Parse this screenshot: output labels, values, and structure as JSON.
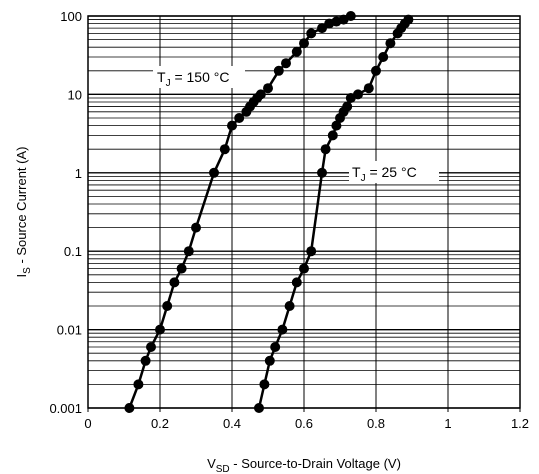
{
  "chart_data": {
    "type": "scatter",
    "xlabel": {
      "main": "V",
      "sub": "SD",
      "rest": " - Source-to-Drain Voltage (V)"
    },
    "ylabel": {
      "main": "I",
      "sub": "S",
      "rest": " - Source Current (A)"
    },
    "xlim": [
      0,
      1.2
    ],
    "ylim": [
      0.001,
      100
    ],
    "yscale": "log",
    "grid": "horizontal-minor-log",
    "x_ticks": [
      "0",
      "0.2",
      "0.4",
      "0.6",
      "0.8",
      "1",
      "1.2"
    ],
    "y_ticks": [
      "0.001",
      "0.01",
      "0.1",
      "1",
      "10",
      "100"
    ],
    "annotations": [
      {
        "label": "T",
        "sub": "J",
        "rest": " =  150 °C"
      },
      {
        "label": "T",
        "sub": "J",
        "rest": " =  25 °C"
      }
    ],
    "series": [
      {
        "x": [
          0.115,
          0.14,
          0.16,
          0.175,
          0.2,
          0.22,
          0.24,
          0.26,
          0.28,
          0.3,
          0.35,
          0.38,
          0.4,
          0.42,
          0.44,
          0.45,
          0.46,
          0.47,
          0.48,
          0.5,
          0.53,
          0.55,
          0.58,
          0.6,
          0.62,
          0.65,
          0.67,
          0.69,
          0.71,
          0.73
        ],
        "y": [
          0.001,
          0.002,
          0.004,
          0.006,
          0.01,
          0.02,
          0.04,
          0.06,
          0.1,
          0.2,
          1,
          2,
          4,
          5,
          6,
          7,
          8,
          9,
          10,
          12,
          20,
          25,
          35,
          45,
          60,
          70,
          80,
          85,
          90,
          100
        ]
      },
      {
        "x": [
          0.475,
          0.49,
          0.505,
          0.52,
          0.54,
          0.56,
          0.58,
          0.6,
          0.62,
          0.65,
          0.66,
          0.68,
          0.69,
          0.7,
          0.71,
          0.72,
          0.73,
          0.75,
          0.78,
          0.8,
          0.82,
          0.84,
          0.86,
          0.87,
          0.88,
          0.89
        ],
        "y": [
          0.001,
          0.002,
          0.004,
          0.006,
          0.01,
          0.02,
          0.04,
          0.06,
          0.1,
          1,
          2,
          3,
          4,
          5,
          6,
          7,
          9,
          10,
          12,
          20,
          30,
          45,
          60,
          70,
          80,
          90
        ]
      }
    ]
  }
}
